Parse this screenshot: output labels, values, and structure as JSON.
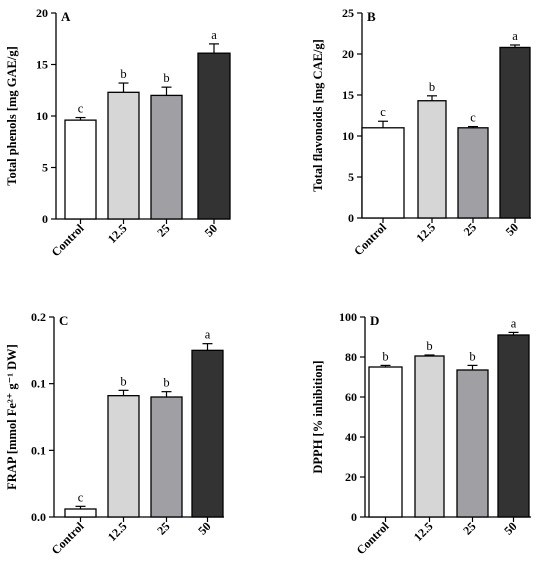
{
  "chart_data": [
    {
      "type": "bar",
      "panel": "A",
      "categories": [
        "Control",
        "12.5",
        "25",
        "50"
      ],
      "values": [
        9.6,
        12.3,
        12.0,
        16.1
      ],
      "errors": [
        0.25,
        0.9,
        0.8,
        0.9
      ],
      "significance": [
        "c",
        "b",
        "b",
        "a"
      ],
      "colors": [
        "#ffffff",
        "#d6d6d6",
        "#a0a0a4",
        "#333333"
      ],
      "ylabel": "Total phenols [mg GAE/g]",
      "ylim": [
        0,
        20
      ],
      "yticks": [
        "0",
        "5",
        "10",
        "15",
        "20"
      ],
      "ytick_values": [
        0,
        5,
        10,
        15,
        20
      ],
      "grid": false
    },
    {
      "type": "bar",
      "panel": "B",
      "categories": [
        "Control",
        "12.5",
        "25",
        "50"
      ],
      "values": [
        11.0,
        14.3,
        11.0,
        20.8
      ],
      "errors": [
        0.8,
        0.6,
        0.15,
        0.3
      ],
      "significance": [
        "c",
        "b",
        "c",
        "a"
      ],
      "colors": [
        "#ffffff",
        "#d6d6d6",
        "#a0a0a4",
        "#333333"
      ],
      "ylabel": "Total flavonoids [mg CAE/g]",
      "ylim": [
        0,
        25
      ],
      "yticks": [
        "0",
        "5",
        "10",
        "15",
        "20",
        "25"
      ],
      "ytick_values": [
        0,
        5,
        10,
        15,
        20,
        25
      ],
      "grid": false
    },
    {
      "type": "bar",
      "panel": "C",
      "categories": [
        "Control",
        "12.5",
        "25",
        "50"
      ],
      "values": [
        0.006,
        0.091,
        0.09,
        0.125
      ],
      "errors": [
        0.002,
        0.004,
        0.004,
        0.005
      ],
      "significance": [
        "c",
        "b",
        "b",
        "a"
      ],
      "colors": [
        "#ffffff",
        "#d6d6d6",
        "#a0a0a4",
        "#333333"
      ],
      "ylabel": "FRAP [mmol Fe²⁺ g⁻¹ DW]",
      "ylim": [
        0,
        0.15
      ],
      "yticks": [
        "0.0",
        "0.1",
        "0.1",
        "0.2"
      ],
      "ytick_values": [
        0,
        0.05,
        0.1,
        0.15
      ],
      "grid": false
    },
    {
      "type": "bar",
      "panel": "D",
      "categories": [
        "Control",
        "12.5",
        "25",
        "50"
      ],
      "values": [
        75.0,
        80.5,
        73.5,
        91.0
      ],
      "errors": [
        0.8,
        0.5,
        2.3,
        1.3
      ],
      "significance": [
        "b",
        "b",
        "b",
        "a"
      ],
      "colors": [
        "#ffffff",
        "#d6d6d6",
        "#a0a0a4",
        "#333333"
      ],
      "ylabel": "DPPH [% inhibition]",
      "ylim": [
        0,
        100
      ],
      "yticks": [
        "0",
        "20",
        "40",
        "60",
        "80",
        "100"
      ],
      "ytick_values": [
        0,
        20,
        40,
        60,
        80,
        100
      ],
      "grid": false
    }
  ]
}
